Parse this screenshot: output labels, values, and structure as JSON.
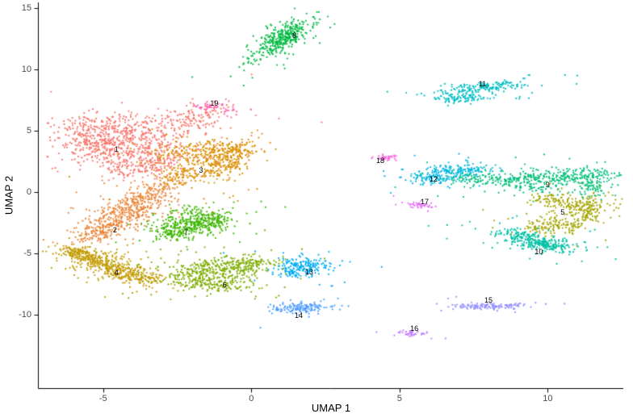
{
  "figure": {
    "background_color": "#ffffff",
    "axis_line_color": "#000000",
    "tick_label_color": "#4d4d4d"
  },
  "axes": {
    "x_title": "UMAP 1",
    "y_title": "UMAP 2"
  },
  "chart_data": {
    "type": "scatter",
    "title": "",
    "xlabel": "UMAP 1",
    "ylabel": "UMAP 2",
    "x_ticks": [
      -5,
      0,
      5,
      10
    ],
    "y_ticks": [
      -10,
      -5,
      0,
      5,
      10,
      15
    ],
    "xlim": [
      -7.2,
      12.55
    ],
    "ylim": [
      -16.0,
      15.45
    ],
    "grid": false,
    "legend": "none",
    "n_clusters": 19,
    "point_radius_px": 1.1,
    "clusters": [
      {
        "id": "1",
        "label": "1",
        "color": "#F8766D",
        "label_pos": [
          -4.55,
          3.5
        ],
        "blobs": [
          [
            -4.7,
            5.1,
            1.05,
            0.65,
            0,
            300
          ],
          [
            -3.9,
            3.8,
            0.95,
            0.75,
            20,
            300
          ],
          [
            -5.4,
            3.7,
            0.55,
            0.6,
            0,
            140
          ],
          [
            -3.25,
            2.35,
            0.7,
            0.5,
            30,
            150
          ],
          [
            -2.2,
            5.8,
            0.8,
            0.45,
            15,
            90
          ],
          [
            -1.5,
            6.5,
            0.45,
            0.3,
            20,
            45
          ],
          [
            -4.3,
            1.9,
            0.5,
            0.35,
            0,
            60
          ]
        ]
      },
      {
        "id": "2",
        "label": "2",
        "color": "#EB8335",
        "label_pos": [
          -4.6,
          -3.1
        ],
        "blobs": [
          [
            -3.55,
            -0.55,
            0.5,
            0.4,
            40,
            130
          ],
          [
            -4.15,
            -1.6,
            0.55,
            0.45,
            45,
            170
          ],
          [
            -4.8,
            -2.7,
            0.5,
            0.4,
            40,
            150
          ],
          [
            -5.2,
            -3.5,
            0.4,
            0.28,
            35,
            80
          ],
          [
            -3.2,
            0.4,
            0.45,
            0.3,
            30,
            60
          ]
        ]
      },
      {
        "id": "3",
        "label": "3",
        "color": "#DA8F00",
        "label_pos": [
          -1.7,
          1.75
        ],
        "blobs": [
          [
            -1.6,
            3.3,
            0.8,
            0.42,
            5,
            220
          ],
          [
            -0.85,
            2.35,
            0.38,
            0.65,
            -10,
            150
          ],
          [
            -2.15,
            1.45,
            0.6,
            0.45,
            20,
            130
          ],
          [
            -1.45,
            2.3,
            0.5,
            0.4,
            0,
            60
          ],
          [
            -0.4,
            3.3,
            0.35,
            0.3,
            0,
            40
          ]
        ]
      },
      {
        "id": "4",
        "label": "4",
        "color": "#C29B00",
        "label_pos": [
          -4.55,
          -6.6
        ],
        "blobs": [
          [
            -5.7,
            -5.15,
            0.5,
            0.32,
            -25,
            140
          ],
          [
            -5.0,
            -5.85,
            0.55,
            0.38,
            -25,
            170
          ],
          [
            -4.3,
            -6.55,
            0.5,
            0.36,
            -25,
            150
          ],
          [
            -3.7,
            -7.1,
            0.42,
            0.3,
            -20,
            90
          ],
          [
            -6.0,
            -4.7,
            0.3,
            0.22,
            0,
            40
          ]
        ]
      },
      {
        "id": "5",
        "label": "5",
        "color": "#A4A500",
        "label_pos": [
          10.5,
          -1.65
        ],
        "blobs": [
          [
            10.9,
            -0.95,
            0.55,
            0.4,
            -15,
            140
          ],
          [
            11.25,
            -1.85,
            0.33,
            0.5,
            10,
            100
          ],
          [
            10.4,
            -2.6,
            0.5,
            0.32,
            -30,
            90
          ],
          [
            9.75,
            -3.05,
            0.35,
            0.22,
            -20,
            50
          ],
          [
            10.0,
            -0.5,
            0.4,
            0.25,
            0,
            40
          ]
        ]
      },
      {
        "id": "6",
        "label": "6",
        "color": "#7EAD00",
        "label_pos": [
          -0.9,
          -7.6
        ],
        "blobs": [
          [
            -1.5,
            -6.45,
            0.8,
            0.5,
            -10,
            210
          ],
          [
            -0.55,
            -6.0,
            0.6,
            0.4,
            15,
            140
          ],
          [
            -1.95,
            -7.3,
            0.5,
            0.33,
            -15,
            110
          ],
          [
            -0.9,
            -7.55,
            0.5,
            0.3,
            0,
            80
          ],
          [
            0.2,
            -5.9,
            0.4,
            0.25,
            0,
            50
          ]
        ]
      },
      {
        "id": "7",
        "label": "7",
        "color": "#3FB600",
        "label_pos": [
          -2.2,
          -3.25
        ],
        "blobs": [
          [
            -2.1,
            -2.7,
            0.62,
            0.48,
            10,
            250
          ],
          [
            -1.3,
            -2.3,
            0.4,
            0.33,
            15,
            100
          ],
          [
            -2.65,
            -3.35,
            0.38,
            0.28,
            0,
            80
          ],
          [
            -1.9,
            -1.7,
            0.4,
            0.3,
            0,
            50
          ]
        ]
      },
      {
        "id": "8",
        "label": "8",
        "color": "#00BB44",
        "label_pos": [
          1.45,
          12.75
        ],
        "blobs": [
          [
            1.05,
            12.5,
            0.85,
            0.26,
            62,
            330
          ],
          [
            1.0,
            12.4,
            1.05,
            0.45,
            62,
            60
          ]
        ]
      },
      {
        "id": "9",
        "label": "9",
        "color": "#00BF7A",
        "label_pos": [
          10.0,
          0.55
        ],
        "blobs": [
          [
            10.55,
            1.15,
            1.05,
            0.36,
            5,
            290
          ],
          [
            8.7,
            1.0,
            0.9,
            0.24,
            3,
            110
          ],
          [
            7.35,
            1.25,
            0.5,
            0.28,
            0,
            50
          ],
          [
            11.45,
            0.25,
            0.28,
            0.45,
            -10,
            60
          ],
          [
            9.6,
            0.3,
            0.5,
            0.3,
            0,
            40
          ]
        ]
      },
      {
        "id": "10",
        "label": "10",
        "color": "#00C0A5",
        "label_pos": [
          9.7,
          -4.9
        ],
        "blobs": [
          [
            9.6,
            -4.05,
            0.78,
            0.3,
            -22,
            210
          ],
          [
            9.95,
            -4.4,
            0.3,
            0.22,
            -20,
            80
          ],
          [
            8.95,
            -3.4,
            0.35,
            0.22,
            -20,
            50
          ]
        ]
      },
      {
        "id": "11",
        "label": "11",
        "color": "#00BDC4",
        "label_pos": [
          7.8,
          8.8
        ],
        "blobs": [
          [
            7.8,
            8.55,
            0.75,
            0.2,
            14,
            160
          ],
          [
            7.15,
            7.65,
            0.45,
            0.17,
            6,
            90
          ],
          [
            7.5,
            8.1,
            0.5,
            0.3,
            10,
            25
          ]
        ]
      },
      {
        "id": "12",
        "label": "12",
        "color": "#00B6DF",
        "label_pos": [
          6.15,
          1.05
        ],
        "blobs": [
          [
            6.55,
            1.55,
            0.55,
            0.34,
            18,
            190
          ],
          [
            7.5,
            1.75,
            0.4,
            0.2,
            10,
            40
          ],
          [
            6.2,
            0.95,
            0.35,
            0.22,
            0,
            35
          ]
        ]
      },
      {
        "id": "13",
        "label": "13",
        "color": "#00ACF4",
        "label_pos": [
          1.95,
          -6.55
        ],
        "blobs": [
          [
            1.8,
            -6.05,
            0.45,
            0.38,
            0,
            180
          ],
          [
            1.5,
            -6.7,
            0.3,
            0.2,
            0,
            40
          ]
        ]
      },
      {
        "id": "14",
        "label": "14",
        "color": "#519DFF",
        "label_pos": [
          1.6,
          -10.05
        ],
        "blobs": [
          [
            1.65,
            -9.45,
            0.5,
            0.24,
            8,
            150
          ]
        ]
      },
      {
        "id": "15",
        "label": "15",
        "color": "#9490FF",
        "label_pos": [
          8.0,
          -8.85
        ],
        "blobs": [
          [
            8.0,
            -9.3,
            0.62,
            0.14,
            3,
            130
          ]
        ]
      },
      {
        "id": "16",
        "label": "16",
        "color": "#C27FFF",
        "label_pos": [
          5.5,
          -11.15
        ],
        "blobs": [
          [
            5.45,
            -11.55,
            0.28,
            0.13,
            0,
            45
          ]
        ]
      },
      {
        "id": "17",
        "label": "17",
        "color": "#E370F6",
        "label_pos": [
          5.85,
          -0.8
        ],
        "blobs": [
          [
            5.65,
            -1.1,
            0.28,
            0.13,
            -10,
            45
          ]
        ]
      },
      {
        "id": "18",
        "label": "18",
        "color": "#F866DE",
        "label_pos": [
          4.35,
          2.55
        ],
        "blobs": [
          [
            4.55,
            2.8,
            0.2,
            0.13,
            0,
            35
          ]
        ]
      },
      {
        "id": "19",
        "label": "19",
        "color": "#FF63B6",
        "label_pos": [
          -1.25,
          7.2
        ],
        "blobs": [
          [
            -1.35,
            7.0,
            0.3,
            0.16,
            10,
            40
          ],
          [
            -0.85,
            6.65,
            0.2,
            0.12,
            0,
            10
          ]
        ]
      }
    ]
  }
}
